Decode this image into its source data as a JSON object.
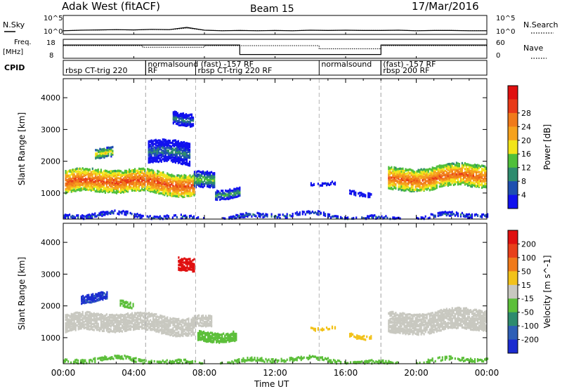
{
  "header": {
    "station": "Adak West (fitACF)",
    "beam": "Beam 15",
    "date": "17/Mar/2016"
  },
  "summary": {
    "nsky_label": "N.Sky",
    "nsearch_label": "N.Search",
    "freq_label_1": "Freq.",
    "freq_label_2": "[MHz]",
    "nave_label": "Nave",
    "cpid_label": "CPID",
    "tick_1e5": "10^5",
    "tick_1e0": "10^0",
    "freq_ticks": [
      "18",
      "8"
    ],
    "nave_ticks": [
      "60",
      "0"
    ]
  },
  "cpid_segments": [
    {
      "label": "rbsp CT-trig 220",
      "start_h": 0.0
    },
    {
      "label": "RF",
      "start_h": 4.67
    },
    {
      "label": "normalsound (fast) -157 RF",
      "start_h": 4.67
    },
    {
      "label": "rbsp CT-trig 220 RF",
      "start_h": 7.5
    },
    {
      "label": "normalsound",
      "start_h": 14.5
    },
    {
      "label": "(fast) -157 RF",
      "start_h": 18.0
    },
    {
      "label": "rbsp 200 RF",
      "start_h": 18.0
    }
  ],
  "chart_data": [
    {
      "type": "heatmap",
      "title": "",
      "xlabel": "Time UT",
      "ylabel": "Slant Range [km]",
      "xlim": [
        0,
        24
      ],
      "ylim": [
        180,
        4600
      ],
      "yticks": [
        1000,
        2000,
        3000,
        4000
      ],
      "xtick_labels": [
        "00:00",
        "04:00",
        "08:00",
        "12:00",
        "16:00",
        "20:00",
        "00:00"
      ],
      "xticks_hours": [
        0,
        4,
        8,
        12,
        16,
        20,
        24
      ],
      "colorbar_label": "Power [dB]",
      "colorbar_ticks": [
        "4",
        "8",
        "12",
        "16",
        "20",
        "24",
        "28"
      ],
      "colorscale": [
        "#1111ee",
        "#1e4fb0",
        "#2e8b6e",
        "#4fbf3a",
        "#f2e41a",
        "#f6a21d",
        "#f07a1a",
        "#e83a18",
        "#e01010"
      ],
      "value_range": [
        0,
        32
      ],
      "regions": [
        {
          "t0": 0.1,
          "t1": 7.4,
          "center_km": 1320,
          "width_km": 700,
          "value": 26
        },
        {
          "t0": 7.4,
          "t1": 8.6,
          "center_km": 1450,
          "width_km": 500,
          "value": 14
        },
        {
          "t0": 8.6,
          "t1": 10.0,
          "center_km": 1050,
          "width_km": 300,
          "value": 12
        },
        {
          "t0": 1.8,
          "t1": 2.8,
          "center_km": 2150,
          "width_km": 300,
          "value": 18
        },
        {
          "t0": 4.8,
          "t1": 7.2,
          "center_km": 2300,
          "width_km": 700,
          "value": 9
        },
        {
          "t0": 6.2,
          "t1": 7.4,
          "center_km": 3400,
          "width_km": 400,
          "value": 9
        },
        {
          "t0": 14.0,
          "t1": 15.4,
          "center_km": 1250,
          "width_km": 100,
          "value": 5
        },
        {
          "t0": 16.2,
          "t1": 17.4,
          "center_km": 1050,
          "width_km": 120,
          "value": 5
        },
        {
          "t0": 18.4,
          "t1": 23.95,
          "center_km": 1480,
          "width_km": 700,
          "value": 25
        },
        {
          "t0": 0.0,
          "t1": 24.0,
          "center_km": 250,
          "width_km": 120,
          "value": 8
        }
      ]
    },
    {
      "type": "heatmap",
      "title": "",
      "xlabel": "Time UT",
      "ylabel": "Slant Range [km]",
      "xlim": [
        0,
        24
      ],
      "ylim": [
        180,
        4600
      ],
      "yticks": [
        1000,
        2000,
        3000,
        4000
      ],
      "xtick_labels": [
        "00:00",
        "04:00",
        "08:00",
        "12:00",
        "16:00",
        "20:00",
        "00:00"
      ],
      "xticks_hours": [
        0,
        4,
        8,
        12,
        16,
        20,
        24
      ],
      "colorbar_label": "Velocity [m s^-1]",
      "colorbar_ticks": [
        "200",
        "100",
        "50",
        "15",
        "-15",
        "-50",
        "-100",
        "-200"
      ],
      "colorscale": [
        "#1a2bd0",
        "#2e5fb6",
        "#2e8b6e",
        "#5cbf3a",
        "#c8c8c0",
        "#f2c21a",
        "#f07a1a",
        "#e8401a",
        "#e01010"
      ],
      "value_range": [
        -250,
        250
      ],
      "regions": [
        {
          "t0": 0.1,
          "t1": 7.4,
          "center_km": 1420,
          "width_km": 550,
          "value": 0
        },
        {
          "t0": 7.4,
          "t1": 8.4,
          "center_km": 1550,
          "width_km": 350,
          "value": 0
        },
        {
          "t0": 7.6,
          "t1": 9.8,
          "center_km": 1100,
          "width_km": 300,
          "value": -60
        },
        {
          "t0": 1.0,
          "t1": 2.5,
          "center_km": 2200,
          "width_km": 250,
          "value": -200
        },
        {
          "t0": 3.2,
          "t1": 4.0,
          "center_km": 2000,
          "width_km": 200,
          "value": -60
        },
        {
          "t0": 6.5,
          "t1": 7.4,
          "center_km": 3400,
          "width_km": 400,
          "value": 220
        },
        {
          "t0": 14.0,
          "t1": 15.4,
          "center_km": 1250,
          "width_km": 100,
          "value": 40
        },
        {
          "t0": 16.2,
          "t1": 17.4,
          "center_km": 1100,
          "width_km": 120,
          "value": 40
        },
        {
          "t0": 18.4,
          "t1": 23.95,
          "center_km": 1500,
          "width_km": 650,
          "value": 0
        },
        {
          "t0": 0.0,
          "t1": 24.0,
          "center_km": 250,
          "width_km": 120,
          "value": -40
        }
      ]
    }
  ],
  "nsky_series": [
    0.8,
    1.0,
    1.1,
    1.2,
    1.1,
    1.3,
    1.2,
    2.0,
    1.0,
    0.8,
    0.9,
    0.8,
    0.9,
    0.8,
    1.0,
    0.9,
    1.0,
    0.9,
    0.9,
    1.0,
    0.8,
    0.9,
    0.9,
    0.8,
    0.8
  ],
  "freq_series": [
    {
      "t": 0,
      "v": 15
    },
    {
      "t": 10,
      "v": 15
    },
    {
      "t": 10,
      "v": 10
    },
    {
      "t": 18,
      "v": 10
    },
    {
      "t": 18,
      "v": 15
    },
    {
      "t": 24,
      "v": 15
    }
  ],
  "nave_series": [
    {
      "t": 0,
      "v": 40
    },
    {
      "t": 4.5,
      "v": 40
    },
    {
      "t": 4.5,
      "v": 35
    },
    {
      "t": 8,
      "v": 35
    },
    {
      "t": 8,
      "v": 40
    },
    {
      "t": 14.5,
      "v": 40
    },
    {
      "t": 14.5,
      "v": 30
    },
    {
      "t": 18,
      "v": 30
    },
    {
      "t": 18,
      "v": 40
    },
    {
      "t": 24,
      "v": 40
    }
  ],
  "colors": {
    "frame": "#000000",
    "dashed_marker": "#b4b4b4"
  }
}
